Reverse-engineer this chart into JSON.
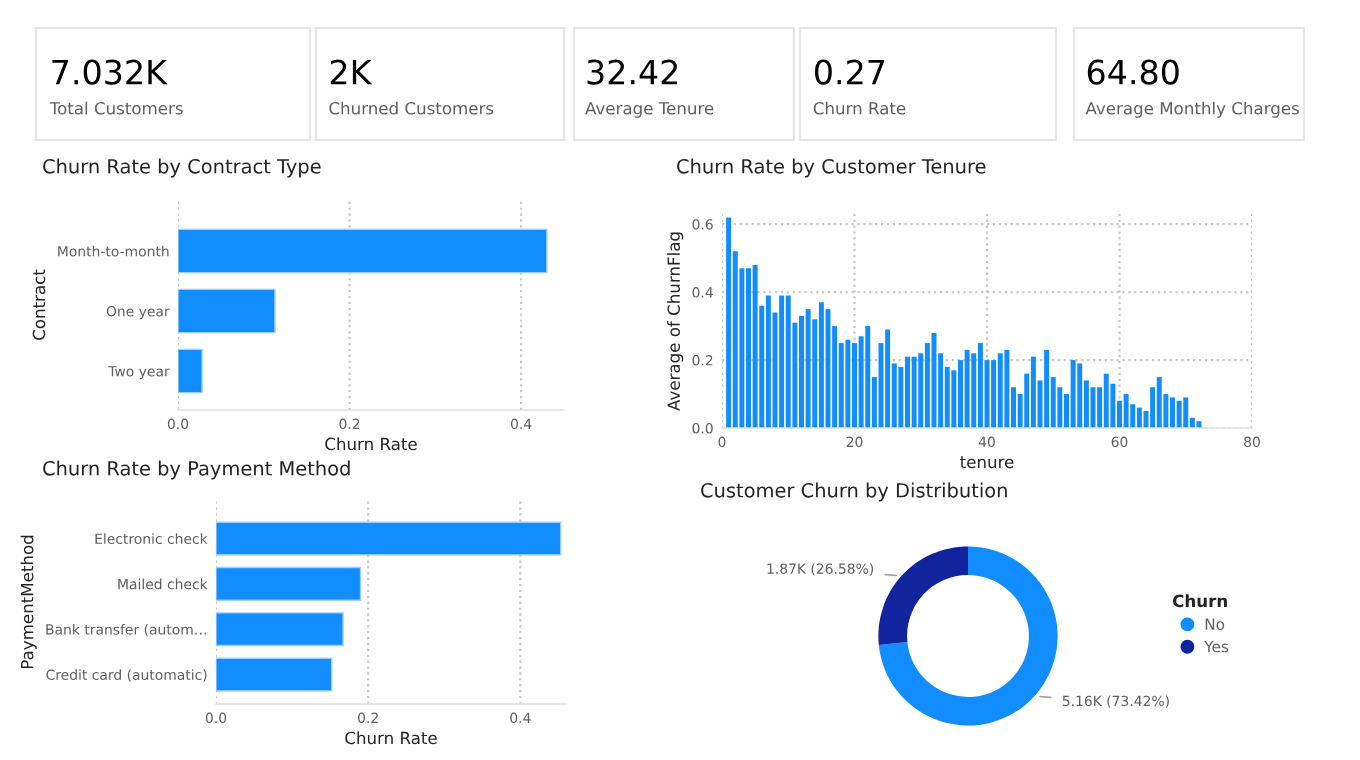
{
  "chart_data": [
    {
      "type": "other",
      "title": "Total Customers",
      "annotations": [
        "7.032K"
      ]
    },
    {
      "type": "other",
      "title": "Churned Customers",
      "annotations": [
        "2K"
      ]
    },
    {
      "type": "other",
      "title": "Average Tenure",
      "annotations": [
        "32.42"
      ]
    },
    {
      "type": "other",
      "title": "Churn Rate",
      "annotations": [
        "0.27"
      ]
    },
    {
      "type": "other",
      "title": "Average Monthly Charges",
      "annotations": [
        "64.80"
      ]
    },
    {
      "type": "bar",
      "title": "Churn Rate by Contract Type",
      "orientation": "horizontal",
      "xlabel": "Churn Rate",
      "ylabel": "Contract",
      "categories": [
        "Month-to-month",
        "One year",
        "Two year"
      ],
      "values": [
        0.43,
        0.113,
        0.028
      ],
      "color": "#118dff",
      "xlim": [
        0,
        0.45
      ],
      "xticks": [
        {
          "value": 0,
          "label": "0.0"
        },
        0.2,
        0.4
      ],
      "grid": "x"
    },
    {
      "type": "bar",
      "title": "Churn Rate by Customer Tenure",
      "xlabel": "tenure",
      "ylabel": "Average of ChurnFlag",
      "color": "#118dff",
      "x": [
        1,
        2,
        3,
        4,
        5,
        6,
        7,
        8,
        9,
        10,
        11,
        12,
        13,
        14,
        15,
        16,
        17,
        18,
        19,
        20,
        21,
        22,
        23,
        24,
        25,
        26,
        27,
        28,
        29,
        30,
        31,
        32,
        33,
        34,
        35,
        36,
        37,
        38,
        39,
        40,
        41,
        42,
        43,
        44,
        45,
        46,
        47,
        48,
        49,
        50,
        51,
        52,
        53,
        54,
        55,
        56,
        57,
        58,
        59,
        60,
        61,
        62,
        63,
        64,
        65,
        66,
        67,
        68,
        69,
        70,
        71,
        72
      ],
      "values": [
        0.62,
        0.52,
        0.47,
        0.47,
        0.48,
        0.36,
        0.39,
        0.34,
        0.39,
        0.39,
        0.31,
        0.33,
        0.35,
        0.32,
        0.37,
        0.35,
        0.3,
        0.25,
        0.26,
        0.25,
        0.27,
        0.3,
        0.15,
        0.25,
        0.29,
        0.19,
        0.18,
        0.21,
        0.21,
        0.22,
        0.25,
        0.28,
        0.22,
        0.18,
        0.17,
        0.2,
        0.23,
        0.22,
        0.25,
        0.2,
        0.2,
        0.22,
        0.23,
        0.12,
        0.1,
        0.16,
        0.21,
        0.14,
        0.23,
        0.15,
        0.12,
        0.1,
        0.2,
        0.19,
        0.14,
        0.12,
        0.12,
        0.16,
        0.13,
        0.08,
        0.1,
        0.07,
        0.06,
        0.05,
        0.12,
        0.15,
        0.1,
        0.09,
        0.08,
        0.09,
        0.03,
        0.02
      ],
      "xlim": [
        0,
        80
      ],
      "xticks": [
        0,
        20,
        40,
        60,
        80
      ],
      "ylim": [
        0,
        0.63
      ],
      "yticks": [
        {
          "value": 0,
          "label": "0.0"
        },
        0.2,
        0.4,
        0.6
      ],
      "grid": true
    },
    {
      "type": "bar",
      "title": "Churn Rate by Payment Method",
      "orientation": "horizontal",
      "xlabel": "Churn Rate",
      "ylabel": "PaymentMethod",
      "categories": [
        "Electronic check",
        "Mailed check",
        "Bank transfer (autom…",
        "Credit card (automatic)"
      ],
      "values": [
        0.453,
        0.19,
        0.167,
        0.152
      ],
      "color": "#118dff",
      "xlim": [
        0,
        0.46
      ],
      "xticks": [
        {
          "value": 0,
          "label": "0.0"
        },
        0.2,
        0.4
      ],
      "grid": "x"
    },
    {
      "type": "donut",
      "title": "Customer Churn by Distribution",
      "categories": [
        "No",
        "Yes"
      ],
      "values": [
        73.42,
        26.58
      ],
      "colors": [
        "#118dff",
        "#12239e"
      ],
      "value_labels": [
        "5.16K (73.42%)",
        "1.87K (26.58%)"
      ],
      "legend_title": "Churn",
      "legend": "right"
    }
  ]
}
